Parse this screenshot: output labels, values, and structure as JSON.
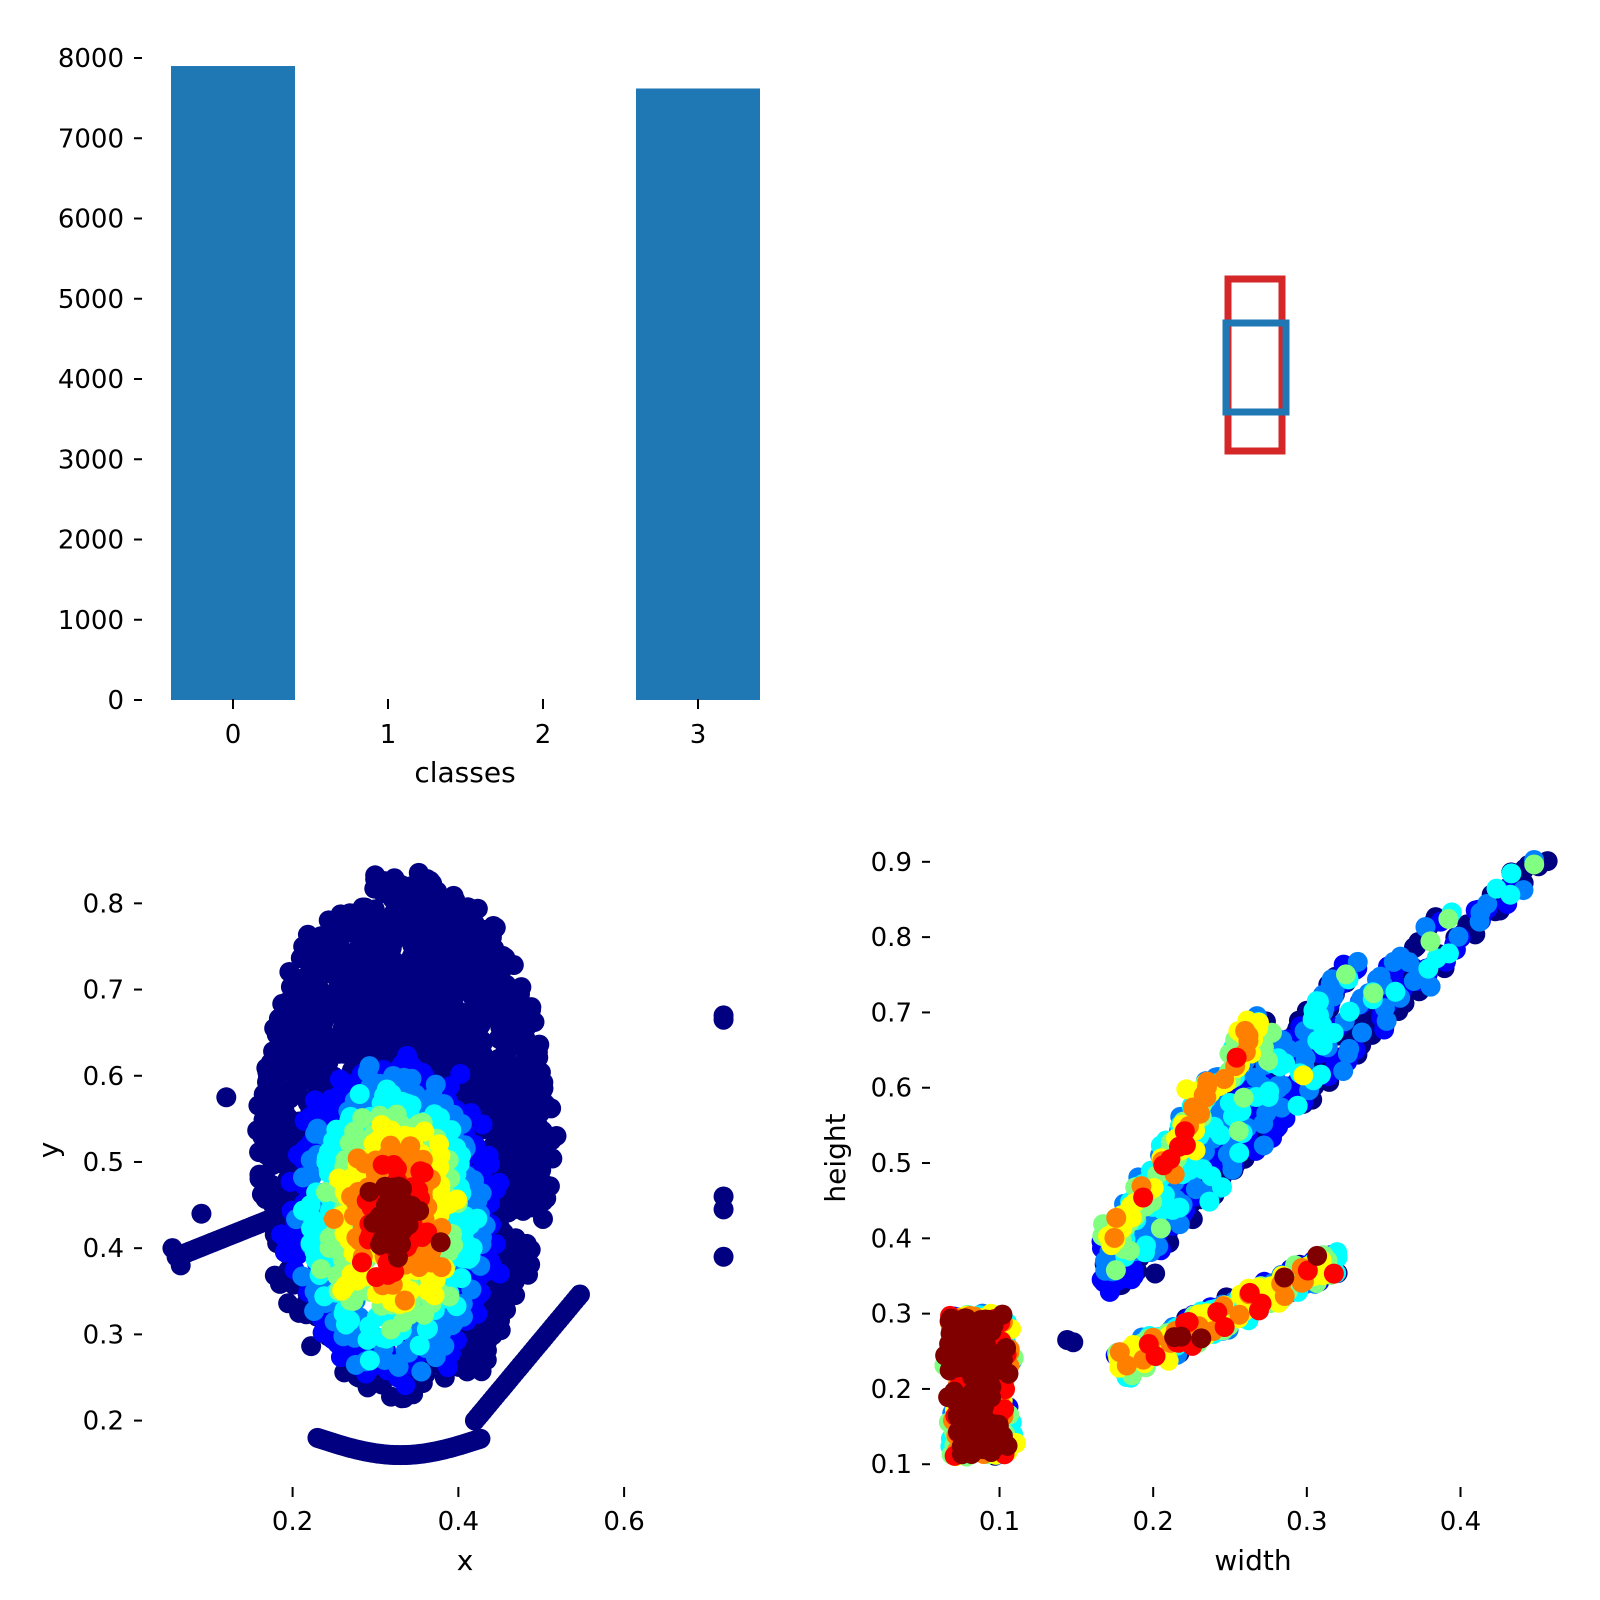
{
  "colors": {
    "bar": "#1f77b4",
    "box_outer": "#d62728",
    "box_inner": "#1f77b4",
    "jet": [
      "#000080",
      "#0000ff",
      "#0080ff",
      "#00ffff",
      "#80ff80",
      "#ffff00",
      "#ff8000",
      "#ff0000",
      "#800000"
    ]
  },
  "chart_data": [
    {
      "id": "classes",
      "type": "bar",
      "categories": [
        "0",
        "1",
        "2",
        "3"
      ],
      "values": [
        7900,
        0,
        0,
        7620
      ],
      "xlabel": "classes",
      "ylabel": "",
      "ylim": [
        0,
        8000
      ],
      "yticks": [
        "0",
        "1000",
        "2000",
        "3000",
        "4000",
        "5000",
        "6000",
        "7000",
        "8000"
      ],
      "grid": false
    },
    {
      "id": "boxes",
      "type": "box-overlay",
      "description_boxes": [
        {
          "color": "red",
          "x_center": 0.5,
          "y_center": 0.5,
          "w": 0.07,
          "h": 0.22
        },
        {
          "color": "blue",
          "x_center": 0.5,
          "y_center": 0.5,
          "w": 0.075,
          "h": 0.115
        }
      ],
      "xlabel": "",
      "ylabel": "",
      "axes_visible": false
    },
    {
      "id": "xy",
      "type": "scatter",
      "xlabel": "x",
      "ylabel": "y",
      "xlim": [
        0.04,
        0.77
      ],
      "ylim": [
        0.145,
        0.87
      ],
      "xticks": [
        "0.2",
        "0.4",
        "0.6"
      ],
      "yticks": [
        "0.2",
        "0.3",
        "0.4",
        "0.5",
        "0.6",
        "0.7",
        "0.8"
      ],
      "colormap": "jet",
      "density_center": [
        0.32,
        0.43
      ],
      "outliers": [
        [
          0.72,
          0.67
        ],
        [
          0.72,
          0.665
        ],
        [
          0.72,
          0.46
        ],
        [
          0.72,
          0.445
        ],
        [
          0.72,
          0.39
        ],
        [
          0.055,
          0.4
        ],
        [
          0.065,
          0.38
        ],
        [
          0.09,
          0.44
        ],
        [
          0.12,
          0.575
        ]
      ]
    },
    {
      "id": "wh",
      "type": "scatter",
      "xlabel": "width",
      "ylabel": "height",
      "xlim": [
        0.058,
        0.455
      ],
      "ylim": [
        0.095,
        0.925
      ],
      "xticks": [
        "0.1",
        "0.2",
        "0.3",
        "0.4"
      ],
      "yticks": [
        "0.1",
        "0.2",
        "0.3",
        "0.4",
        "0.5",
        "0.6",
        "0.7",
        "0.8",
        "0.9"
      ],
      "colormap": "jet",
      "clusters": [
        {
          "x_range": [
            0.065,
            0.11
          ],
          "y_range": [
            0.11,
            0.31
          ]
        },
        {
          "x_range": [
            0.16,
            0.27
          ],
          "y_range": [
            0.38,
            0.69
          ]
        },
        {
          "x_range": [
            0.17,
            0.45
          ],
          "y_range": [
            0.39,
            0.92
          ]
        },
        {
          "x_range": [
            0.175,
            0.32
          ],
          "y_range": [
            0.22,
            0.36
          ]
        }
      ],
      "outliers": [
        [
          0.144,
          0.265
        ],
        [
          0.148,
          0.262
        ]
      ]
    }
  ]
}
